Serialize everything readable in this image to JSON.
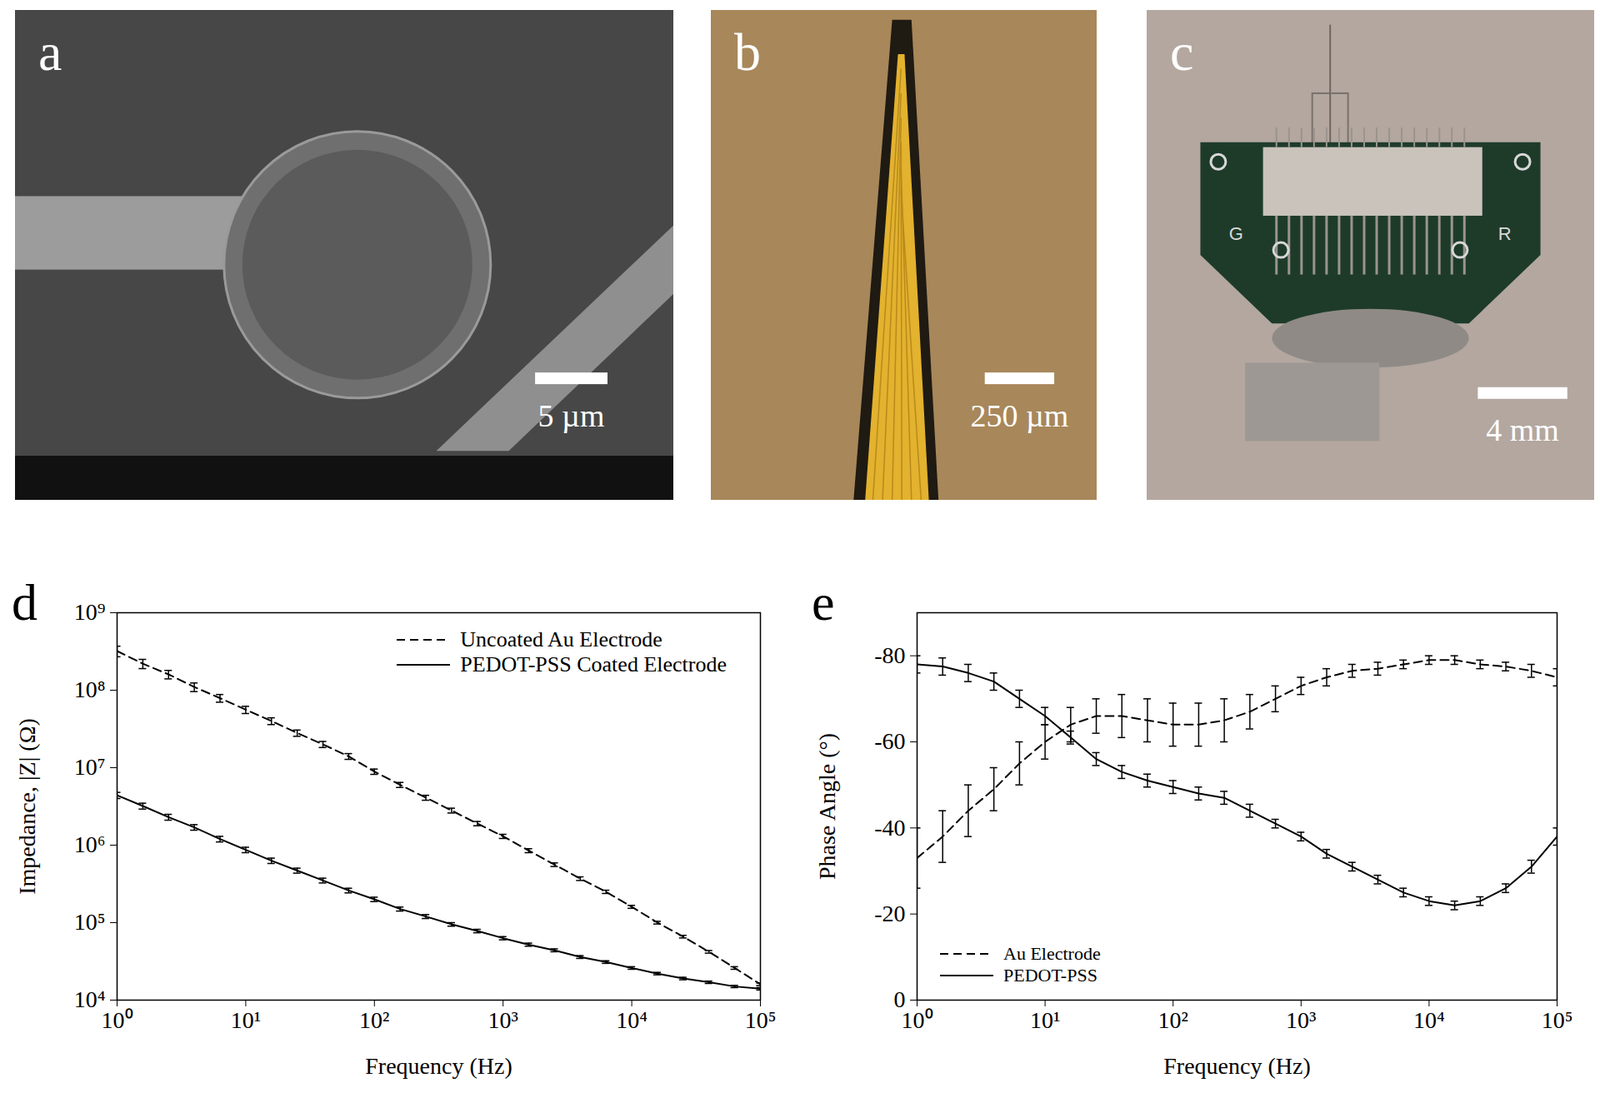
{
  "image_panels": [
    {
      "label": "a",
      "scale_bar": "5 µm"
    },
    {
      "label": "b",
      "scale_bar": "250 µm"
    },
    {
      "label": "c",
      "scale_bar": "4 mm",
      "markings": [
        "G",
        "R"
      ]
    }
  ],
  "chart_data": [
    {
      "type": "line",
      "title": "d",
      "x_label": "Frequency (Hz)",
      "y_label": "Impedance, |Z| (Ω)",
      "log": true,
      "legend": "top-right",
      "xlim": [
        1,
        100000
      ],
      "ylim": [
        10000,
        1000000000
      ],
      "xticks": [
        {
          "value": 1,
          "label": "10⁰"
        },
        {
          "value": 10,
          "label": "10¹"
        },
        {
          "value": 100,
          "label": "10²"
        },
        {
          "value": 1000,
          "label": "10³"
        },
        {
          "value": 10000,
          "label": "10⁴"
        },
        {
          "value": 100000,
          "label": "10⁵"
        }
      ],
      "yticks": [
        {
          "value": 10000,
          "label": "10⁴"
        },
        {
          "value": 100000,
          "label": "10⁵"
        },
        {
          "value": 1000000,
          "label": "10⁶"
        },
        {
          "value": 10000000,
          "label": "10⁷"
        },
        {
          "value": 100000000,
          "label": "10⁸"
        },
        {
          "value": 1000000000,
          "label": "10⁹"
        }
      ],
      "x": [
        1,
        1.585,
        2.512,
        3.981,
        6.31,
        10,
        15.85,
        25.12,
        39.81,
        63.1,
        100,
        158.5,
        251.2,
        398.1,
        631,
        1000,
        1585,
        2512,
        3981,
        6310,
        10000,
        15850,
        25120,
        39810,
        63100,
        100000
      ],
      "series": [
        {
          "name": "Uncoated Au Electrode",
          "color": "#000000",
          "line_style": "dashed",
          "values": [
            320000000,
            220000000,
            160000000,
            110000000,
            79000000,
            56000000,
            40000000,
            28000000,
            20000000,
            14000000,
            8900000,
            6000000,
            4100000,
            2800000,
            1900000,
            1300000,
            850000,
            560000,
            370000,
            250000,
            160000,
            100000,
            66000,
            42000,
            26000,
            16000
          ],
          "errors": [
            50000000,
            30000000,
            20000000,
            14000000,
            9000000,
            6000000,
            4000000,
            2600000,
            1800000,
            1200000,
            700000,
            450000,
            300000,
            200000,
            120000,
            80000,
            50000,
            30000,
            20000,
            12000,
            7000,
            4000,
            2600,
            1600,
            1000,
            600
          ]
        },
        {
          "name": "PEDOT-PSS Coated Electrode",
          "color": "#000000",
          "line_style": "solid",
          "values": [
            4400000,
            3200000,
            2300000,
            1700000,
            1200000,
            870000,
            630000,
            470000,
            350000,
            260000,
            200000,
            150000,
            120000,
            95000,
            78000,
            63000,
            52000,
            44000,
            36000,
            31000,
            26000,
            22000,
            19000,
            17000,
            15000,
            14000
          ],
          "errors": [
            400000,
            280000,
            200000,
            140000,
            100000,
            70000,
            50000,
            35000,
            25000,
            18000,
            13000,
            9000,
            7000,
            5000,
            4000,
            3000,
            2400,
            1900,
            1500,
            1200,
            1000,
            800,
            700,
            600,
            500,
            500
          ]
        }
      ]
    },
    {
      "type": "line",
      "title": "e",
      "x_label": "Frequency (Hz)",
      "y_label": "Phase Angle (°)",
      "log": "x",
      "legend": "bottom-left",
      "xlim": [
        1,
        100000
      ],
      "ylim": [
        0,
        -90
      ],
      "xticks": [
        {
          "value": 1,
          "label": "10⁰"
        },
        {
          "value": 10,
          "label": "10¹"
        },
        {
          "value": 100,
          "label": "10²"
        },
        {
          "value": 1000,
          "label": "10³"
        },
        {
          "value": 10000,
          "label": "10⁴"
        },
        {
          "value": 100000,
          "label": "10⁵"
        }
      ],
      "yticks": [
        0,
        -20,
        -40,
        -60,
        -80
      ],
      "x": [
        1,
        1.585,
        2.512,
        3.981,
        6.31,
        10,
        15.85,
        25.12,
        39.81,
        63.1,
        100,
        158.5,
        251.2,
        398.1,
        631,
        1000,
        1585,
        2512,
        3981,
        6310,
        10000,
        15850,
        25120,
        39810,
        63100,
        100000
      ],
      "series": [
        {
          "name": "Au Electrode",
          "color": "#000000",
          "line_style": "dashed",
          "values": [
            -33,
            -38,
            -44,
            -49,
            -55,
            -60,
            -64,
            -66,
            -66,
            -65,
            -64,
            -64,
            -65,
            -67,
            -70,
            -73,
            -75,
            -76.5,
            -77,
            -78,
            -79,
            -79,
            -78,
            -77.5,
            -76.5,
            -75
          ],
          "errors": [
            7,
            6,
            6,
            5,
            5,
            4,
            4,
            4,
            5,
            5,
            5,
            5,
            5,
            4,
            3,
            2,
            2,
            1.5,
            1.5,
            1,
            1,
            1,
            1,
            1,
            1.5,
            2
          ]
        },
        {
          "name": "PEDOT-PSS",
          "color": "#000000",
          "line_style": "solid",
          "values": [
            -78,
            -77.5,
            -76,
            -74,
            -70,
            -66,
            -61,
            -56,
            -53,
            -51,
            -49.5,
            -48,
            -47,
            -44,
            -41,
            -38,
            -34,
            -31,
            -28,
            -25,
            -23,
            -22,
            -23,
            -26,
            -31,
            -38
          ],
          "errors": [
            2,
            2,
            2,
            2,
            2,
            2,
            1.5,
            1.5,
            1.5,
            1.5,
            1.5,
            1.5,
            1.5,
            1.5,
            1,
            1,
            1,
            1,
            1,
            1,
            1,
            1,
            1,
            1,
            1.5,
            2
          ]
        }
      ]
    }
  ]
}
